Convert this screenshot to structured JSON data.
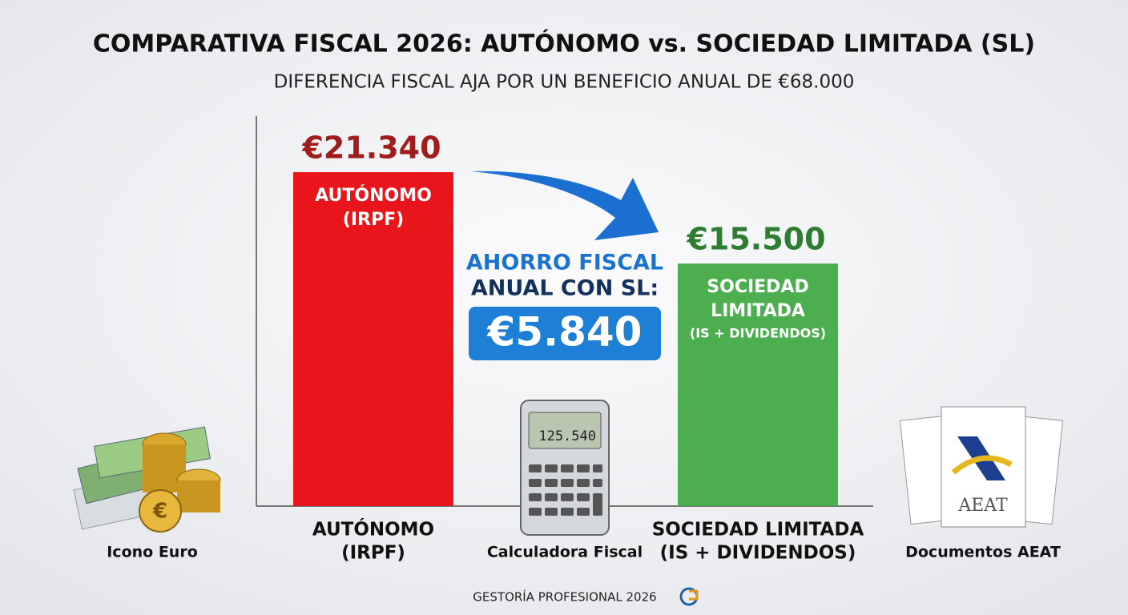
{
  "chart_data": {
    "type": "bar",
    "title": "COMPARATIVA FISCAL 2026: AUTÓNOMO vs. SOCIEDAD LIMITADA (SL)",
    "subtitle": "DIFERENCIA FISCAL AJA POR UN BENEFICIO ANUAL DE €68.000",
    "categories": [
      [
        "AUTÓNOMO",
        "(IRPF)"
      ],
      [
        "SOCIEDAD LIMITADA",
        "(IS + DIVIDENDOS)"
      ]
    ],
    "bar_labels": [
      [
        "AUTÓNOMO",
        "(IRPF)"
      ],
      [
        "SOCIEDAD",
        "LIMITADA",
        "(IS + DIVIDENDOS)"
      ]
    ],
    "values": [
      21340,
      15500
    ],
    "value_labels": [
      "€21.340",
      "€15.500"
    ],
    "colors": [
      "#e8151b",
      "#4cae4f"
    ],
    "value_label_colors": [
      "#a11d1d",
      "#2f7d33"
    ],
    "ylim": [
      0,
      25000
    ],
    "annotation": {
      "lines": [
        "AHORRO FISCAL",
        "ANUAL CON SL:"
      ],
      "amount": "€5.840"
    },
    "icons": {
      "euro": "Icono Euro",
      "calculator": "Calculadora Fiscal",
      "calculator_display": "125.540",
      "documents": "Documentos AEAT",
      "document_logo": "AEAT"
    },
    "footer": "GESTORÍA PROFESIONAL 2026"
  }
}
